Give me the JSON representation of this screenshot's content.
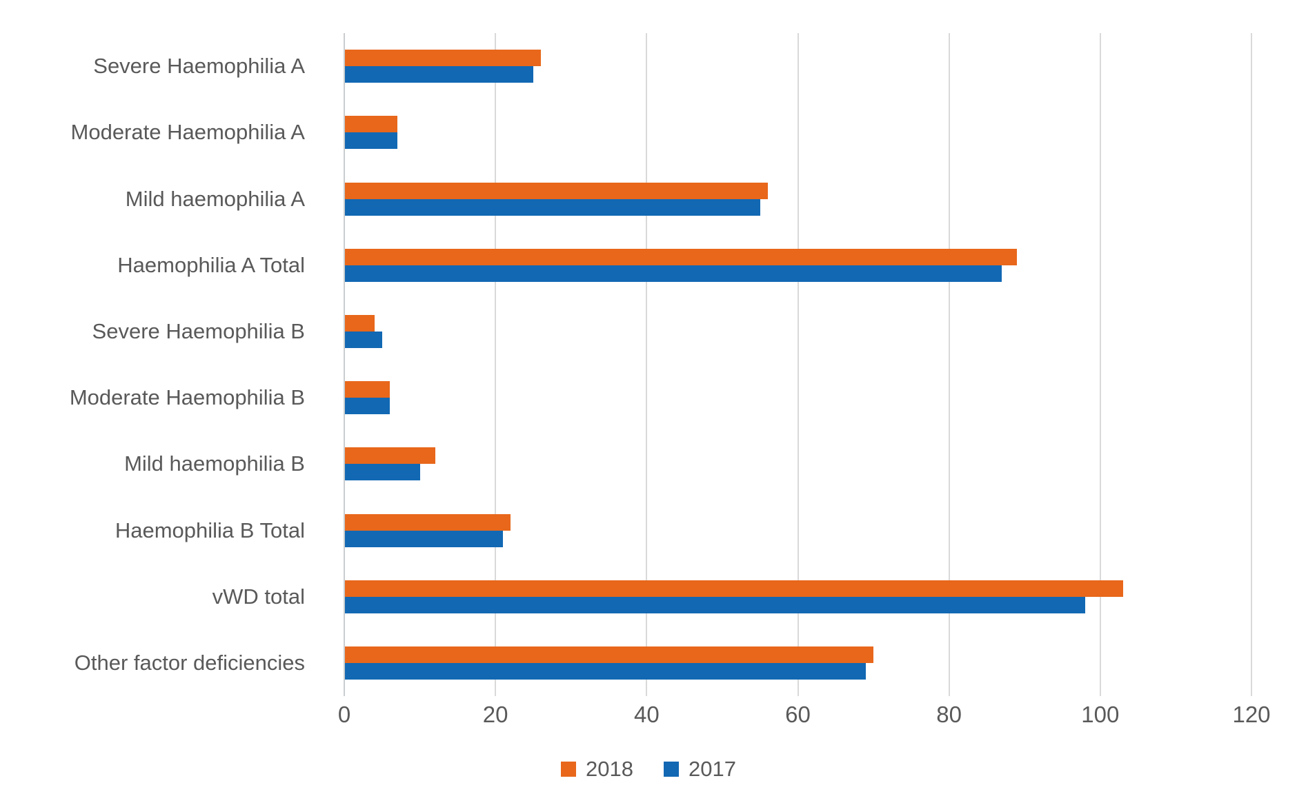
{
  "chart_data": {
    "type": "bar",
    "orientation": "horizontal",
    "title": "",
    "xlabel": "",
    "ylabel": "",
    "categories": [
      "Severe Haemophilia A",
      "Moderate Haemophilia A",
      "Mild haemophilia A",
      "Haemophilia A Total",
      "Severe Haemophilia B",
      "Moderate Haemophilia B",
      "Mild haemophilia B",
      "Haemophilia B Total",
      "vWD total",
      "Other factor deficiencies"
    ],
    "series": [
      {
        "name": "2018",
        "color": "#e8671b",
        "values": [
          26,
          7,
          56,
          89,
          4,
          6,
          12,
          22,
          103,
          70
        ]
      },
      {
        "name": "2017",
        "color": "#1268b3",
        "values": [
          25,
          7,
          55,
          87,
          5,
          6,
          10,
          21,
          98,
          69
        ]
      }
    ],
    "x_ticks": [
      0,
      20,
      40,
      60,
      80,
      100,
      120
    ],
    "xlim": [
      0,
      120
    ],
    "grid": true,
    "legend_position": "bottom"
  },
  "colors": {
    "grid_line": "#d9d9d9",
    "axis_line": "#c9cdd0",
    "tick_text": "#595959",
    "background": "#ffffff"
  }
}
